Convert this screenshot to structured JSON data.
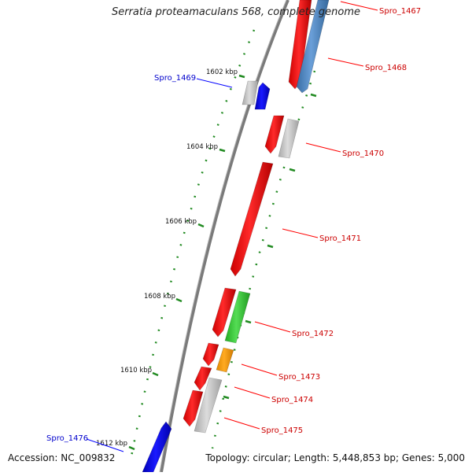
{
  "title": "Serratia proteamaculans 568, complete genome",
  "footer": {
    "accession": "Accession: NC_009832",
    "summary": "Topology: circular; Length: 5,448,853 bp; Genes: 5,000"
  },
  "colors": {
    "forward_strand": "#ff0000",
    "reverse_strand": "#0000ff",
    "gray_gene": "#c0c0c0",
    "steelblue_gene": "#4f86c0",
    "green_gene": "#33cc33",
    "orange_gene": "#ff9900",
    "ticks": "#228b22",
    "backbone": "#808080"
  },
  "ruler": {
    "unit": "kbp",
    "ticks": [
      {
        "label": "1602 kbp",
        "pos": 1602
      },
      {
        "label": "1604 kbp",
        "pos": 1604
      },
      {
        "label": "1606 kbp",
        "pos": 1606
      },
      {
        "label": "1608 kbp",
        "pos": 1608
      },
      {
        "label": "1610 kbp",
        "pos": 1610
      },
      {
        "label": "1612 kbp",
        "pos": 1612
      }
    ]
  },
  "genes": [
    {
      "name": "Spro_1467",
      "strand": "forward",
      "label_side": "right",
      "color": "red"
    },
    {
      "name": "Spro_1468",
      "strand": "forward",
      "label_side": "right",
      "color": "red"
    },
    {
      "name": "Spro_1469",
      "strand": "reverse",
      "label_side": "left",
      "color": "blue"
    },
    {
      "name": "Spro_1470",
      "strand": "forward",
      "label_side": "right",
      "color": "red"
    },
    {
      "name": "Spro_1471",
      "strand": "forward",
      "label_side": "right",
      "color": "red"
    },
    {
      "name": "Spro_1472",
      "strand": "forward",
      "label_side": "right",
      "color": "red"
    },
    {
      "name": "Spro_1473",
      "strand": "forward",
      "label_side": "right",
      "color": "red"
    },
    {
      "name": "Spro_1474",
      "strand": "forward",
      "label_side": "right",
      "color": "red"
    },
    {
      "name": "Spro_1475",
      "strand": "forward",
      "label_side": "right",
      "color": "red"
    },
    {
      "name": "Spro_1476",
      "strand": "reverse",
      "label_side": "left",
      "color": "blue"
    }
  ]
}
